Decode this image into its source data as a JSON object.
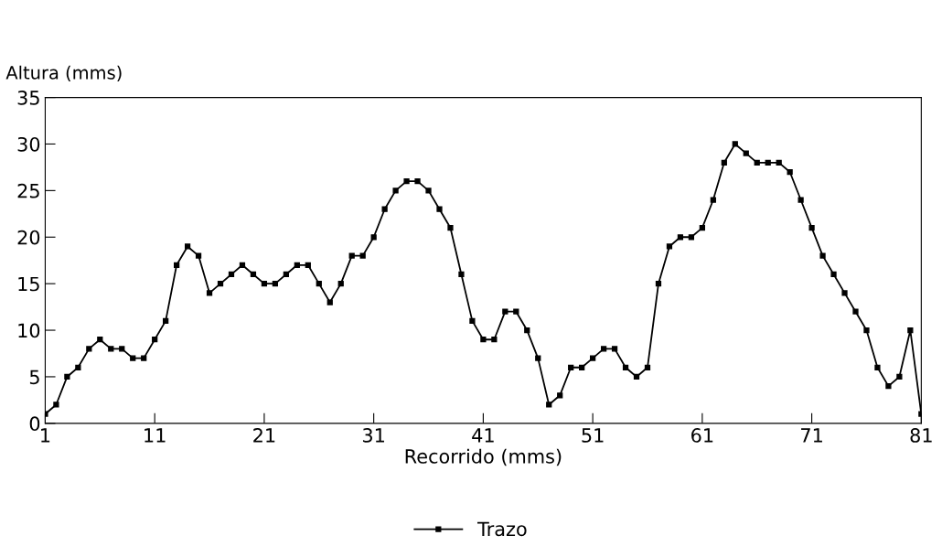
{
  "chart_data": {
    "type": "line",
    "xlabel": "Recorrido (mms)",
    "ylabel": "Altura (mms)",
    "x": [
      1,
      2,
      3,
      4,
      5,
      6,
      7,
      8,
      9,
      10,
      11,
      12,
      13,
      14,
      15,
      16,
      17,
      18,
      19,
      20,
      21,
      22,
      23,
      24,
      25,
      26,
      27,
      28,
      29,
      30,
      31,
      32,
      33,
      34,
      35,
      36,
      37,
      38,
      39,
      40,
      41,
      42,
      43,
      44,
      45,
      46,
      47,
      48,
      49,
      50,
      51,
      52,
      53,
      54,
      55,
      56,
      57,
      58,
      59,
      60,
      61,
      62,
      63,
      64,
      65,
      66,
      67,
      68,
      69,
      70,
      71,
      72,
      73,
      74,
      75,
      76,
      77,
      78,
      79,
      80,
      81
    ],
    "series": [
      {
        "name": "Trazo",
        "color": "#000000",
        "values": [
          1,
          2,
          5,
          6,
          8,
          9,
          8,
          8,
          7,
          7,
          9,
          11,
          17,
          19,
          18,
          14,
          15,
          16,
          17,
          16,
          15,
          15,
          16,
          17,
          17,
          15,
          13,
          15,
          18,
          18,
          20,
          23,
          25,
          26,
          26,
          25,
          23,
          21,
          16,
          11,
          9,
          9,
          12,
          12,
          10,
          7,
          2,
          3,
          6,
          6,
          7,
          8,
          8,
          6,
          5,
          6,
          15,
          19,
          20,
          20,
          21,
          24,
          28,
          30,
          29,
          28,
          28,
          28,
          27,
          24,
          21,
          18,
          16,
          14,
          12,
          10,
          6,
          4,
          5,
          10,
          1
        ]
      }
    ],
    "xlim": [
      1,
      81
    ],
    "xticks": [
      1,
      11,
      21,
      31,
      41,
      51,
      61,
      71,
      81
    ],
    "ylim": [
      0,
      35
    ],
    "yticks": [
      0,
      5,
      10,
      15,
      20,
      25,
      30,
      35
    ],
    "grid": false,
    "legend": "bottom",
    "marker": "square",
    "line_style": "solid"
  }
}
